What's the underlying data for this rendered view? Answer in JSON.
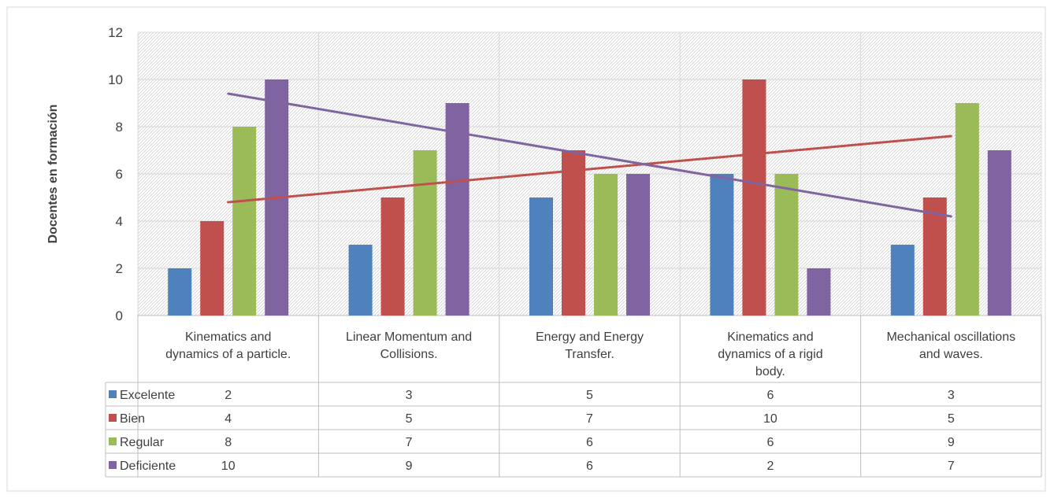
{
  "chart_data": {
    "type": "bar",
    "title": "",
    "ylabel": "Docentes en formación",
    "xlabel": "",
    "ylim": [
      0,
      12
    ],
    "yticks": [
      0,
      2,
      4,
      6,
      8,
      10,
      12
    ],
    "grid": true,
    "legend": "data-table",
    "categories": [
      [
        "Kinematics and",
        "dynamics of a particle."
      ],
      [
        "Linear Momentum and",
        "Collisions."
      ],
      [
        "Energy and Energy",
        "Transfer."
      ],
      [
        "Kinematics and",
        "dynamics of a rigid",
        "body."
      ],
      [
        "Mechanical oscillations",
        "and waves."
      ]
    ],
    "series": [
      {
        "name": "Excelente",
        "color": "#4F81BD",
        "values": [
          2,
          3,
          5,
          6,
          3
        ]
      },
      {
        "name": "Bien",
        "color": "#C0504D",
        "values": [
          4,
          5,
          7,
          10,
          5
        ]
      },
      {
        "name": "Regular",
        "color": "#9BBB59",
        "values": [
          8,
          7,
          6,
          6,
          9
        ]
      },
      {
        "name": "Deficiente",
        "color": "#8064A2",
        "values": [
          10,
          9,
          6,
          2,
          7
        ]
      }
    ],
    "trendlines": [
      {
        "series": "Bien",
        "type": "linear",
        "color": "#C0504D"
      },
      {
        "series": "Deficiente",
        "type": "linear",
        "color": "#8064A2"
      }
    ]
  }
}
